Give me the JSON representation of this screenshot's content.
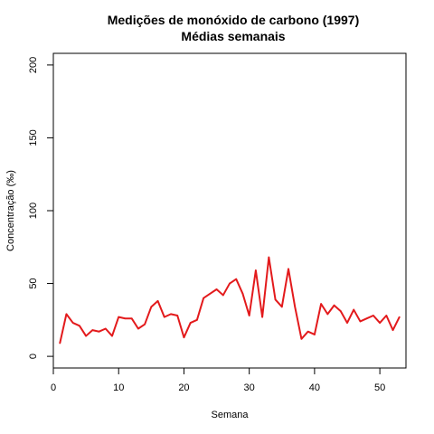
{
  "chart_data": {
    "type": "line",
    "title": "Medições de monóxido de carbono (1997)",
    "subtitle": "Médias semanais",
    "xlabel": "Semana",
    "ylabel": "Concentração (‰)",
    "xlim": [
      0,
      54
    ],
    "ylim": [
      -8,
      208
    ],
    "x_ticks": [
      0,
      10,
      20,
      30,
      40,
      50
    ],
    "y_ticks": [
      0,
      50,
      100,
      150,
      200
    ],
    "grid": false,
    "color": "#e31a1c",
    "series": [
      {
        "x": [
          1,
          2,
          3,
          4,
          5,
          6,
          7,
          8,
          9,
          10,
          11,
          12,
          13,
          14,
          15,
          16,
          17,
          18,
          19,
          20,
          21,
          22,
          23,
          24,
          25,
          26,
          27,
          28,
          29,
          30,
          31,
          32,
          33,
          34,
          35,
          36,
          37,
          38,
          39,
          40,
          41,
          42,
          43,
          44,
          45,
          46,
          47,
          48,
          49,
          50,
          51,
          52,
          53
        ],
        "values": [
          9,
          29,
          23,
          21,
          14,
          18,
          17,
          19,
          14,
          27,
          26,
          26,
          19,
          22,
          34,
          38,
          27,
          29,
          28,
          13,
          23,
          25,
          40,
          43,
          46,
          42,
          50,
          53,
          43,
          28,
          59,
          27,
          68,
          39,
          34,
          60,
          34,
          12,
          17,
          15,
          36,
          29,
          35,
          31,
          23,
          32,
          24,
          26,
          28,
          23,
          28,
          18,
          27
        ]
      }
    ]
  }
}
